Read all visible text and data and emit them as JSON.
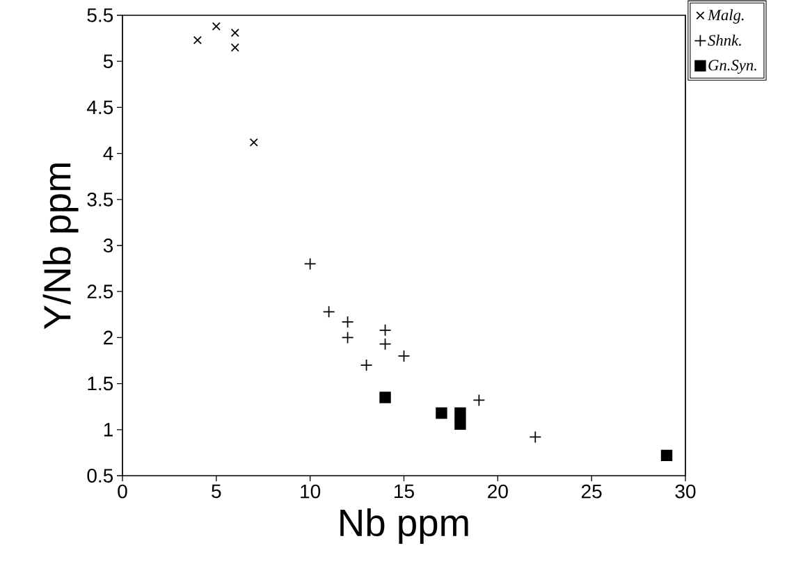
{
  "chart_data": {
    "type": "scatter",
    "xlabel": "Nb ppm",
    "ylabel": "Y/Nb ppm",
    "xlim": [
      0,
      30
    ],
    "xticks": [
      0,
      5,
      10,
      15,
      20,
      25,
      30
    ],
    "ylim": [
      0.5,
      5.5
    ],
    "yticks": [
      0.5,
      1,
      1.5,
      2,
      2.5,
      3,
      3.5,
      4,
      4.5,
      5,
      5.5
    ],
    "grid": false,
    "legend": "top right",
    "series": [
      {
        "name": "Malg.",
        "color": "#000000",
        "marker": "cross",
        "x": [
          4,
          5,
          6,
          6,
          7
        ],
        "values": [
          5.23,
          5.38,
          5.31,
          5.15,
          4.12
        ]
      },
      {
        "name": "Shnk.",
        "color": "#000000",
        "marker": "plus",
        "x": [
          10,
          11,
          12,
          12,
          14,
          14,
          13,
          15,
          19,
          22
        ],
        "values": [
          2.8,
          2.28,
          2.17,
          2.0,
          2.08,
          1.93,
          1.7,
          1.8,
          1.32,
          0.92
        ]
      },
      {
        "name": "Gn.Syn.",
        "color": "#000000",
        "marker": "square",
        "x": [
          14,
          17,
          18,
          18,
          29
        ],
        "values": [
          1.35,
          1.18,
          1.18,
          1.06,
          0.72
        ]
      }
    ]
  }
}
